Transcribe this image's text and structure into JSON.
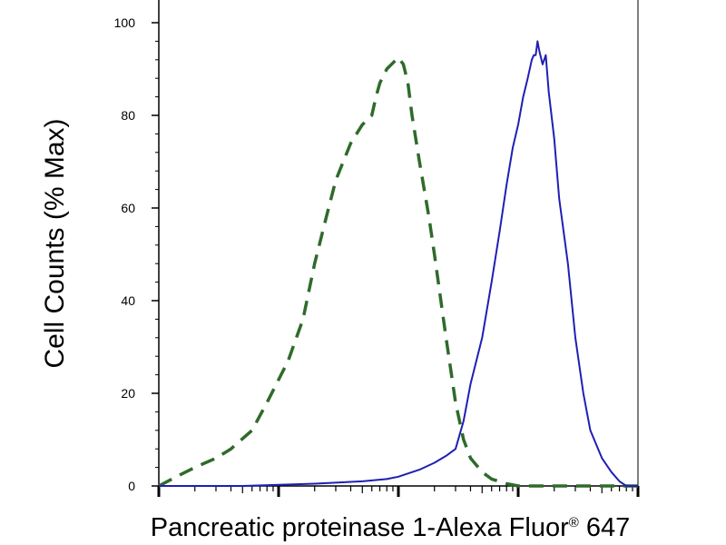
{
  "chart_data": {
    "type": "line",
    "title": "",
    "xlabel": "Pancreatic proteinase 1-Alexa Fluor® 647",
    "ylabel": "Cell Counts (% Max)",
    "x_scale": "log",
    "xlim": [
      1,
      10000
    ],
    "ylim": [
      0,
      100
    ],
    "yticks": [
      "0",
      "20",
      "40",
      "60",
      "80",
      "100"
    ],
    "grid": false,
    "legend": "none",
    "series": [
      {
        "color": "#2f6b2a",
        "style": "dashed",
        "x": [
          1,
          1.4,
          2,
          3,
          4,
          6,
          8,
          12,
          16,
          20,
          25,
          30,
          40,
          50,
          60,
          65,
          70,
          80,
          100,
          110,
          120,
          130,
          150,
          180,
          200,
          250,
          300,
          350,
          400,
          500,
          600,
          800,
          1000,
          1500,
          2000,
          3000,
          4000,
          6000,
          10000
        ],
        "values": [
          0,
          2,
          4,
          6,
          8,
          12,
          18,
          27,
          36,
          48,
          58,
          66,
          74,
          78,
          80,
          84,
          87,
          90,
          92.5,
          91,
          87,
          80,
          70,
          58,
          50,
          32,
          18,
          10,
          6,
          3,
          1.5,
          0.5,
          0,
          0,
          0,
          0,
          0,
          0,
          0
        ]
      },
      {
        "color": "#1f1fb4",
        "style": "solid",
        "x": [
          1,
          5,
          20,
          50,
          80,
          100,
          150,
          200,
          250,
          300,
          350,
          400,
          500,
          600,
          700,
          800,
          900,
          1000,
          1100,
          1200,
          1300,
          1350,
          1400,
          1450,
          1500,
          1600,
          1700,
          1800,
          2000,
          2200,
          2600,
          3000,
          3500,
          4000,
          5000,
          6000,
          7000,
          8000,
          10000
        ],
        "values": [
          0,
          0,
          0.5,
          1,
          1.5,
          2,
          3.5,
          5,
          6.5,
          8,
          14,
          22,
          32,
          44,
          55,
          65,
          73,
          78,
          84,
          88,
          92,
          93,
          93,
          96,
          94,
          91,
          93,
          85,
          75,
          62,
          48,
          32,
          20,
          12,
          6,
          3,
          1,
          0,
          0
        ]
      }
    ]
  }
}
